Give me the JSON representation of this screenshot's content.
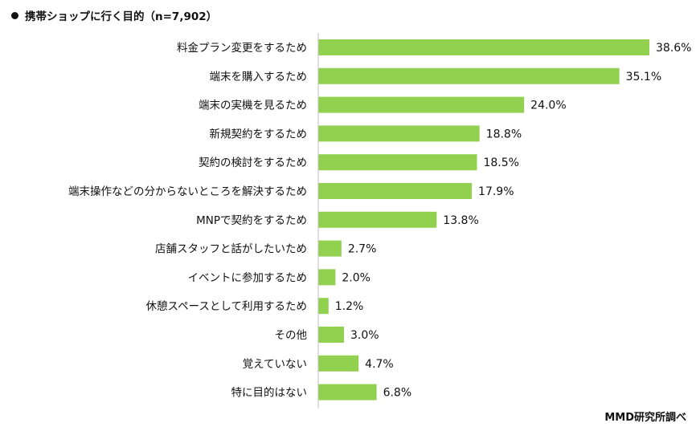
{
  "chart_data": {
    "type": "bar",
    "orientation": "horizontal",
    "title": "携帯ショップに行く目的（n=7,902）",
    "categories": [
      "料金プラン変更をするため",
      "端末を購入するため",
      "端末の実機を見るため",
      "新規契約をするため",
      "契約の検討をするため",
      "端末操作などの分からないところを解決するため",
      "MNPで契約をするため",
      "店舗スタッフと話がしたいため",
      "イベントに参加するため",
      "休憩スペースとして利用するため",
      "その他",
      "覚えていない",
      "特に目的はない"
    ],
    "values": [
      38.6,
      35.1,
      24.0,
      18.8,
      18.5,
      17.9,
      13.8,
      2.7,
      2.0,
      1.2,
      3.0,
      4.7,
      6.8
    ],
    "value_labels": [
      "38.6%",
      "35.1%",
      "24.0%",
      "18.8%",
      "18.5%",
      "17.9%",
      "13.8%",
      "2.7%",
      "2.0%",
      "1.2%",
      "3.0%",
      "4.7%",
      "6.8%"
    ],
    "xlim": [
      0,
      38.6
    ],
    "bar_color": "#92D050",
    "source": "MMD研究所調べ"
  }
}
